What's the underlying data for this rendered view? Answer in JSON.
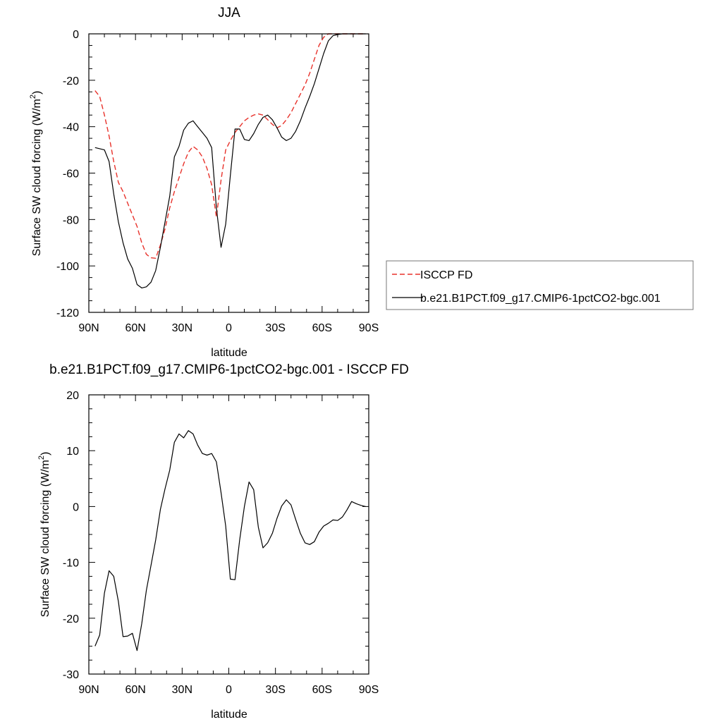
{
  "chart_data": [
    {
      "type": "line",
      "title": "JJA",
      "xlabel": "latitude",
      "ylabel": "Surface SW cloud forcing (W/m",
      "ylabel_sup": "2",
      "ylabel_tail": ")",
      "xlim": [
        90,
        -90
      ],
      "ylim": [
        -120,
        0
      ],
      "yticks": [
        0,
        -20,
        -40,
        -60,
        -80,
        -100,
        -120
      ],
      "ytick_labels": [
        "0",
        "-20",
        "-40",
        "-60",
        "-80",
        "-100",
        "-120"
      ],
      "xticks": [
        90,
        60,
        30,
        0,
        -30,
        -60,
        -90
      ],
      "xtick_labels": [
        "90N",
        "60N",
        "30N",
        "0",
        "30S",
        "60S",
        "90S"
      ],
      "legend": "right",
      "series": [
        {
          "name": "ISCCP FD",
          "color": "#e8322b",
          "dash": "dashed",
          "x": [
            86,
            83,
            80,
            77,
            74,
            71,
            68,
            65,
            62,
            59,
            56,
            53,
            50,
            47,
            44,
            41,
            38,
            35,
            32,
            29,
            26,
            23,
            20,
            17,
            14,
            11,
            8,
            5,
            2,
            -1,
            -4,
            -7,
            -10,
            -13,
            -16,
            -19,
            -22,
            -25,
            -28,
            -31,
            -34,
            -37,
            -40,
            -43,
            -46,
            -49,
            -52,
            -55,
            -58,
            -61,
            -64,
            -67,
            -70,
            -73,
            -76,
            -79,
            -82,
            -85,
            -88
          ],
          "y": [
            -24.5,
            -27,
            -35,
            -44,
            -55,
            -64,
            -68,
            -73,
            -78,
            -83,
            -90,
            -95,
            -96.5,
            -96.7,
            -91,
            -84,
            -75,
            -68,
            -62,
            -56,
            -51,
            -48.5,
            -50,
            -53,
            -58,
            -65,
            -79,
            -63,
            -50,
            -46,
            -42.5,
            -40,
            -37.5,
            -36,
            -35,
            -34.5,
            -35,
            -37,
            -39,
            -40.5,
            -39.5,
            -37,
            -34,
            -30,
            -26,
            -22,
            -17,
            -11,
            -5,
            -1.5,
            0,
            0,
            0,
            0,
            0,
            0,
            0,
            0,
            0
          ]
        },
        {
          "name": "b.e21.B1PCT.f09_g17.CMIP6-1pctCO2-bgc.001",
          "color": "#000000",
          "dash": "solid",
          "x": [
            86,
            83,
            80,
            77,
            74,
            71,
            68,
            65,
            62,
            59,
            56,
            53,
            50,
            47,
            44,
            41,
            38,
            35,
            32,
            29,
            26,
            23,
            20,
            17,
            14,
            11,
            8,
            5,
            2,
            -1,
            -4,
            -7,
            -10,
            -13,
            -16,
            -19,
            -22,
            -25,
            -28,
            -31,
            -34,
            -37,
            -40,
            -43,
            -46,
            -49,
            -52,
            -55,
            -58,
            -61,
            -64,
            -67,
            -70,
            -73,
            -76,
            -79,
            -82,
            -85,
            -88
          ],
          "y": [
            -49,
            -49.5,
            -50,
            -55,
            -69,
            -81,
            -90,
            -97,
            -101,
            -108,
            -109.5,
            -109,
            -107,
            -102,
            -92,
            -81,
            -70,
            -53,
            -48.5,
            -41.5,
            -38.5,
            -37.5,
            -40,
            -42.5,
            -45,
            -49,
            -75,
            -92,
            -82,
            -61,
            -41,
            -41,
            -45.5,
            -46,
            -43,
            -39,
            -36,
            -35,
            -37,
            -40.5,
            -44.5,
            -46,
            -45,
            -42,
            -37.5,
            -32,
            -27,
            -21.5,
            -15,
            -8.5,
            -3,
            -0.8,
            -0.3,
            0,
            0,
            0,
            0,
            0,
            0
          ]
        }
      ]
    },
    {
      "type": "line",
      "title": "b.e21.B1PCT.f09_g17.CMIP6-1pctCO2-bgc.001 - ISCCP FD",
      "xlabel": "latitude",
      "ylabel": "Surface SW cloud forcing (W/m",
      "ylabel_sup": "2",
      "ylabel_tail": ")",
      "xlim": [
        90,
        -90
      ],
      "ylim": [
        -30,
        20
      ],
      "yticks": [
        20,
        10,
        0,
        -10,
        -20,
        -30
      ],
      "ytick_labels": [
        "20",
        "10",
        "0",
        "-10",
        "-20",
        "-30"
      ],
      "xticks": [
        90,
        60,
        30,
        0,
        -30,
        -60,
        -90
      ],
      "xtick_labels": [
        "90N",
        "60N",
        "30N",
        "0",
        "30S",
        "60S",
        "90S"
      ],
      "series": [
        {
          "color": "#000000",
          "dash": "solid",
          "x": [
            86,
            83,
            80,
            77,
            74,
            71,
            68,
            65,
            62,
            59,
            56,
            53,
            50,
            47,
            44,
            41,
            38,
            35,
            32,
            29,
            26,
            23,
            20,
            17,
            14,
            11,
            8,
            5,
            2,
            -1,
            -4,
            -7,
            -10,
            -13,
            -16,
            -19,
            -22,
            -25,
            -28,
            -31,
            -34,
            -37,
            -40,
            -43,
            -46,
            -49,
            -52,
            -55,
            -58,
            -61,
            -64,
            -67,
            -70,
            -73,
            -76,
            -79,
            -82,
            -85,
            -88
          ],
          "y": [
            -25,
            -23,
            -15.5,
            -11.5,
            -12.5,
            -17,
            -23.3,
            -23.2,
            -22.7,
            -25.8,
            -21,
            -15,
            -10.5,
            -6,
            -0.5,
            3.2,
            6.5,
            11.5,
            13,
            12.3,
            13.6,
            13,
            11,
            9.5,
            9.2,
            9.5,
            8,
            2.5,
            -3.5,
            -13,
            -13.1,
            -6,
            0,
            4.4,
            3,
            -3.7,
            -7.4,
            -6.5,
            -4.8,
            -2.1,
            0.1,
            1.2,
            0.3,
            -2.3,
            -4.8,
            -6.5,
            -6.8,
            -6.3,
            -4.6,
            -3.5,
            -3,
            -2.4,
            -2.5,
            -1.9,
            -0.6,
            0.9,
            0.5,
            0.2,
            0
          ]
        }
      ]
    }
  ]
}
